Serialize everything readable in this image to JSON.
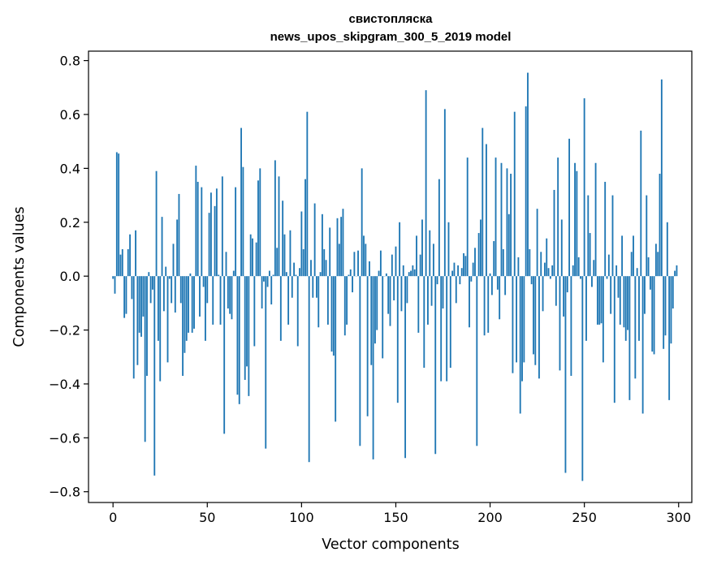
{
  "chart_data": {
    "type": "bar",
    "title": "свистопляска",
    "subtitle": "news_upos_skipgram_300_5_2019 model",
    "xlabel": "Vector components",
    "ylabel": "Components values",
    "xlim": [
      -13,
      307
    ],
    "ylim": [
      -0.84,
      0.835
    ],
    "xticks": [
      0,
      50,
      100,
      150,
      200,
      250,
      300
    ],
    "yticks": [
      -0.8,
      -0.6,
      -0.4,
      -0.2,
      0.0,
      0.2,
      0.4,
      0.6,
      0.8
    ],
    "ytick_labels": [
      "−0.8",
      "−0.6",
      "−0.4",
      "−0.2",
      "0.0",
      "0.2",
      "0.4",
      "0.6",
      "0.8"
    ],
    "bar_color": "#1f77b4",
    "grid": false,
    "x": "0..299 (component index)",
    "values": [
      -0.01,
      -0.065,
      0.46,
      0.455,
      0.08,
      0.1,
      -0.155,
      -0.14,
      0.1,
      0.155,
      -0.085,
      -0.38,
      0.17,
      -0.33,
      -0.21,
      -0.225,
      -0.15,
      -0.615,
      -0.37,
      0.015,
      -0.1,
      -0.05,
      -0.74,
      0.39,
      -0.24,
      -0.39,
      0.22,
      -0.13,
      0.035,
      -0.32,
      -0.01,
      -0.1,
      0.12,
      -0.135,
      0.21,
      0.305,
      -0.1,
      -0.37,
      -0.285,
      -0.24,
      -0.21,
      0.01,
      -0.21,
      -0.195,
      0.41,
      0.35,
      -0.15,
      0.33,
      -0.04,
      -0.24,
      -0.1,
      0.235,
      0.31,
      -0.18,
      0.26,
      0.325,
      0.005,
      -0.18,
      0.37,
      -0.585,
      0.09,
      -0.12,
      -0.14,
      -0.16,
      0.02,
      0.33,
      -0.44,
      -0.475,
      0.55,
      0.405,
      -0.385,
      -0.335,
      -0.445,
      0.155,
      0.14,
      -0.26,
      0.125,
      0.355,
      0.4,
      -0.12,
      -0.02,
      -0.64,
      -0.04,
      0.02,
      -0.105,
      0.005,
      0.43,
      0.105,
      0.37,
      -0.24,
      0.28,
      0.155,
      0.015,
      -0.18,
      0.17,
      -0.08,
      0.05,
      0.005,
      -0.26,
      0.03,
      0.24,
      0.1,
      0.36,
      0.61,
      -0.69,
      0.06,
      -0.08,
      0.27,
      -0.08,
      -0.19,
      0.015,
      0.23,
      0.1,
      0.06,
      -0.18,
      0.18,
      -0.28,
      -0.295,
      -0.54,
      0.215,
      0.12,
      0.22,
      0.25,
      -0.22,
      -0.18,
      0.005,
      0.025,
      -0.06,
      0.09,
      0.0,
      0.095,
      -0.63,
      0.4,
      0.15,
      0.12,
      -0.52,
      0.055,
      -0.33,
      -0.68,
      -0.25,
      -0.2,
      0.02,
      0.095,
      -0.305,
      0.0,
      0.01,
      -0.14,
      -0.185,
      0.08,
      -0.09,
      0.11,
      -0.47,
      0.2,
      -0.13,
      0.04,
      -0.675,
      -0.1,
      0.015,
      0.02,
      0.04,
      0.025,
      0.15,
      -0.21,
      0.08,
      0.21,
      -0.34,
      0.69,
      -0.18,
      0.17,
      -0.11,
      0.12,
      -0.66,
      -0.03,
      0.36,
      -0.39,
      -0.12,
      0.62,
      -0.39,
      0.2,
      -0.34,
      0.02,
      0.05,
      -0.1,
      0.04,
      -0.03,
      0.03,
      0.085,
      0.075,
      0.44,
      -0.19,
      -0.02,
      0.05,
      0.105,
      -0.63,
      0.16,
      0.21,
      0.55,
      -0.22,
      0.49,
      -0.21,
      0.01,
      -0.07,
      0.13,
      0.44,
      -0.05,
      -0.16,
      0.42,
      0.1,
      -0.07,
      0.4,
      0.23,
      0.38,
      -0.36,
      0.61,
      -0.32,
      0.07,
      -0.51,
      -0.39,
      -0.32,
      0.63,
      0.755,
      0.1,
      -0.03,
      -0.29,
      -0.33,
      0.25,
      -0.38,
      0.09,
      -0.13,
      0.05,
      0.14,
      0.03,
      -0.01,
      0.04,
      0.32,
      -0.11,
      0.44,
      -0.35,
      0.21,
      -0.15,
      -0.73,
      -0.06,
      0.51,
      -0.37,
      0.04,
      0.42,
      0.39,
      0.07,
      -0.01,
      -0.76,
      0.66,
      -0.24,
      0.3,
      0.16,
      -0.04,
      0.06,
      0.42,
      -0.18,
      -0.18,
      -0.175,
      -0.32,
      0.35,
      -0.01,
      0.08,
      -0.14,
      0.3,
      -0.47,
      0.04,
      -0.08,
      -0.18,
      0.15,
      -0.19,
      -0.24,
      -0.2,
      -0.46,
      0.09,
      0.15,
      -0.38,
      0.03,
      -0.24,
      0.54,
      -0.51,
      -0.14,
      0.3,
      0.07,
      -0.05,
      -0.28,
      -0.29,
      0.12,
      0.09,
      0.38,
      0.73,
      -0.27,
      -0.22,
      0.2,
      -0.46,
      -0.25,
      -0.12,
      0.02,
      0.04
    ]
  }
}
